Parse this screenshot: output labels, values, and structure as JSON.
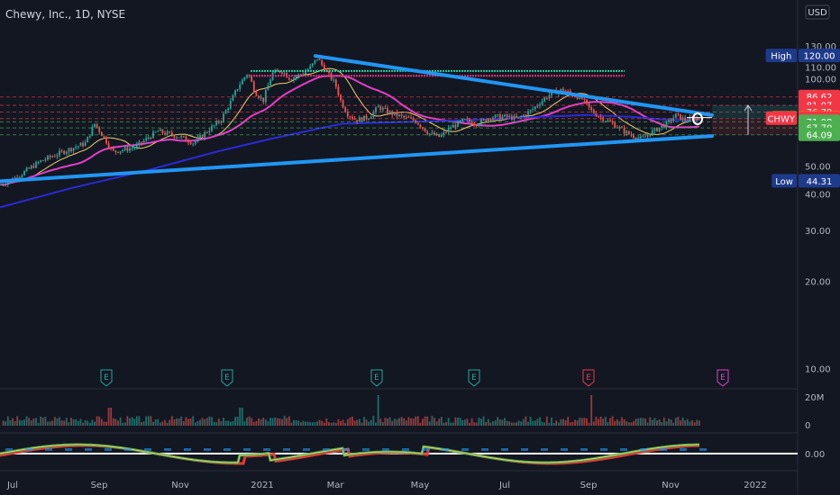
{
  "chart_data": {
    "type": "candlestick",
    "title": "Chewy, Inc., 1D, NYSE",
    "currency": "USD",
    "y_scale": "log",
    "ylim": [
      8.5,
      160
    ],
    "x_ticks": [
      "Jul",
      "Sep",
      "Nov",
      "2021",
      "Mar",
      "May",
      "Jul",
      "Sep",
      "Nov",
      "2022"
    ],
    "y_ticks": [
      10,
      20,
      30,
      40,
      50,
      60,
      70,
      80,
      90,
      100,
      110,
      130
    ],
    "y_tick_labels": [
      "10.00",
      "20.00",
      "30.00",
      "40.00",
      "50.00",
      "",
      "",
      "",
      "",
      "100.00",
      "110.00",
      "130.00"
    ],
    "price_labels": [
      {
        "label": "High",
        "value": 120.0,
        "text": "120.00",
        "color": "#1e3a8a"
      },
      {
        "label": "",
        "value": 86.62,
        "text": "86.62",
        "color": "#f23645"
      },
      {
        "label": "",
        "value": 81.07,
        "text": "81.07",
        "color": "#f23645"
      },
      {
        "label": "",
        "value": 76.79,
        "text": "76.79",
        "color": "#f23645"
      },
      {
        "label": "Pre",
        "value": 73.15,
        "text": "73.15",
        "color": "#ff9800"
      },
      {
        "label": "CHWY",
        "value": 72.92,
        "text": "72.92",
        "color": "#f23645"
      },
      {
        "label": "",
        "value": 71.08,
        "text": "71.08",
        "color": "#4caf50"
      },
      {
        "label": "",
        "value": 67.7,
        "text": "67.70",
        "color": "#4caf50"
      },
      {
        "label": "",
        "value": 64.09,
        "text": "64.09",
        "color": "#4caf50"
      },
      {
        "label": "Low",
        "value": 44.31,
        "text": "44.31",
        "color": "#1e3a8a"
      }
    ],
    "earnings_markers": [
      "E",
      "E",
      "E",
      "E",
      "E",
      "E"
    ],
    "volume": {
      "axis_labels": [
        "20M",
        "0"
      ]
    },
    "oscillator": {
      "axis_labels": [
        "0.00"
      ]
    },
    "colors": {
      "up": "#26a69a",
      "down": "#ef5350",
      "ma_short": "#f0d070",
      "ma_mid": "#e040c8",
      "ma_long": "#2a2ad8",
      "trendline": "#2196f3"
    }
  }
}
